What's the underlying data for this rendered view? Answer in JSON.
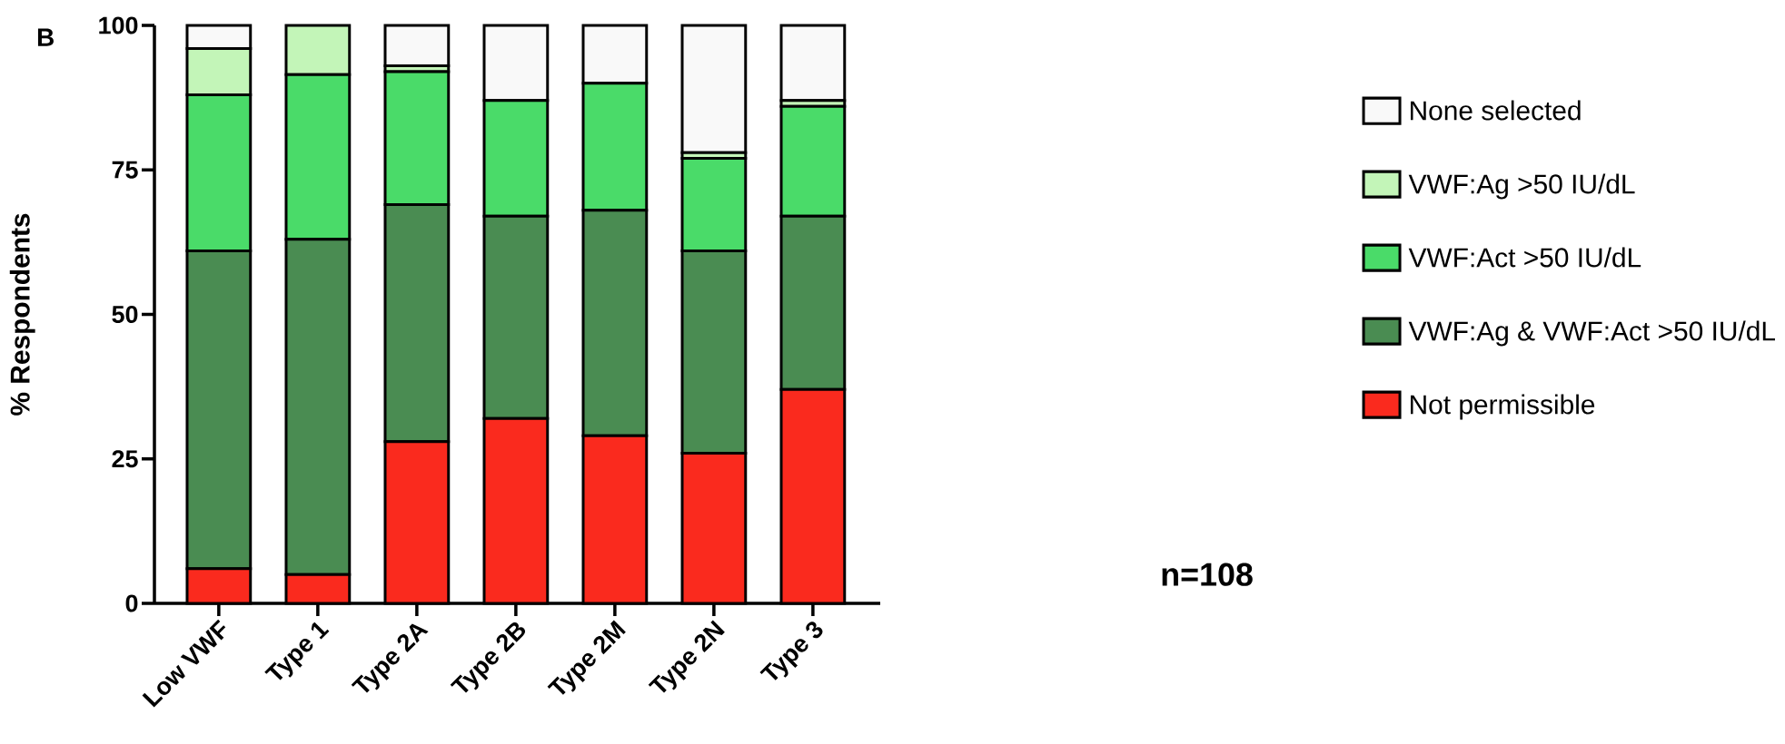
{
  "chart_data": {
    "type": "bar",
    "stacked": true,
    "legend": "right",
    "ylabel": "% Respondents",
    "categories": [
      "Low VWF",
      "Type 1",
      "Type 2A",
      "Type 2B",
      "Type 2M",
      "Type 2N",
      "Type 3"
    ],
    "ylim": [
      0,
      100
    ],
    "yticks": [
      0,
      25,
      50,
      75,
      100
    ],
    "annotations": [
      "B",
      "n=108"
    ],
    "series": [
      {
        "name": "Not permissible",
        "color": "#fa2a1e",
        "values": [
          6,
          5,
          28,
          32,
          29,
          26,
          37
        ]
      },
      {
        "name": "VWF:Ag & VWF:Act >50 IU/dL",
        "color": "#4a8c52",
        "values": [
          55,
          58,
          41,
          35,
          39,
          35,
          30
        ]
      },
      {
        "name": "VWF:Act >50 IU/dL",
        "color": "#4adb69",
        "values": [
          27,
          28.5,
          23,
          20,
          22,
          16,
          19
        ]
      },
      {
        "name": "VWF:Ag >50 IU/dL",
        "color": "#c3f5b8",
        "values": [
          8,
          8.5,
          1,
          0,
          0,
          1,
          1
        ]
      },
      {
        "name": "None selected",
        "color": "#f9f9f9",
        "values": [
          4,
          0,
          7,
          13,
          10,
          22,
          13
        ]
      }
    ]
  }
}
